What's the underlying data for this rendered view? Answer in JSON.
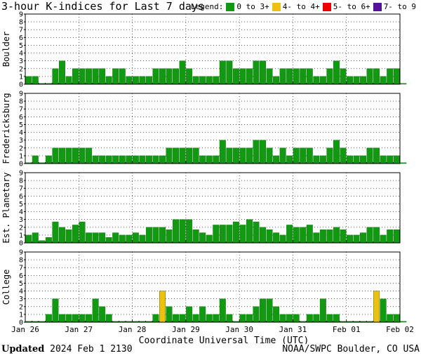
{
  "title": "3-hour K-indices for Last 7 days",
  "legend": {
    "label": "Legend:",
    "items": [
      {
        "label": "0 to 3+",
        "color": "#119911"
      },
      {
        "label": "4- to 4+",
        "color": "#f0c010"
      },
      {
        "label": "5- to 6+",
        "color": "#ee0000"
      },
      {
        "label": "7- to 9",
        "color": "#551199"
      }
    ]
  },
  "footer": {
    "updated_label": "Updated",
    "updated_value": "2024 Feb  1 2130",
    "source": "NOAA/SWPC Boulder, CO USA"
  },
  "chart_data": {
    "type": "bar",
    "xlabel": "Coordinate Universal Time (UTC)",
    "x_ticks": [
      "Jan 26",
      "Jan 27",
      "Jan 28",
      "Jan 29",
      "Jan 30",
      "Jan 31",
      "Feb 01",
      "Feb 02"
    ],
    "ylim": [
      0,
      9
    ],
    "y_ticks": [
      "0",
      "1",
      "2",
      "3",
      "4",
      "5",
      "6",
      "7",
      "8",
      "9"
    ],
    "grid": true,
    "series": [
      {
        "name": "Boulder",
        "values": [
          1,
          1,
          0,
          0,
          2,
          3,
          1,
          2,
          2,
          2,
          2,
          2,
          1,
          2,
          2,
          1,
          1,
          1,
          1,
          2,
          2,
          2,
          2,
          3,
          2,
          1,
          1,
          1,
          1,
          3,
          3,
          2,
          2,
          2,
          3,
          3,
          2,
          1,
          2,
          2,
          2,
          2,
          2,
          1,
          1,
          2,
          3,
          2,
          1,
          1,
          1,
          2,
          2,
          1,
          2,
          2,
          0
        ]
      },
      {
        "name": "Fredericksburg",
        "values": [
          0,
          1,
          0,
          1,
          2,
          2,
          2,
          2,
          2,
          2,
          1,
          1,
          1,
          1,
          1,
          1,
          1,
          1,
          1,
          1,
          1,
          2,
          2,
          2,
          2,
          2,
          1,
          1,
          1,
          3,
          2,
          2,
          2,
          2,
          3,
          3,
          2,
          1,
          2,
          1,
          2,
          2,
          2,
          1,
          1,
          2,
          3,
          2,
          1,
          1,
          1,
          2,
          2,
          1,
          1,
          1,
          0
        ]
      },
      {
        "name": "Est. Planetary",
        "values": [
          1.0,
          1.3,
          0.3,
          0.7,
          2.7,
          2.0,
          1.7,
          2.3,
          2.7,
          1.3,
          1.3,
          1.3,
          0.7,
          1.3,
          1.0,
          1.0,
          1.3,
          1.0,
          2.0,
          2.0,
          2.0,
          1.7,
          3.0,
          3.0,
          3.0,
          1.7,
          1.3,
          1.0,
          2.3,
          2.3,
          2.3,
          2.7,
          2.3,
          3.0,
          2.7,
          2.0,
          1.7,
          1.3,
          1.0,
          2.3,
          2.0,
          2.0,
          2.3,
          1.3,
          1.7,
          1.7,
          2.0,
          1.7,
          1.0,
          1.0,
          1.3,
          2.0,
          2.0,
          1.0,
          1.7,
          1.7
        ]
      },
      {
        "name": "College",
        "values": [
          0,
          0,
          0,
          1,
          3,
          1,
          1,
          1,
          1,
          1,
          3,
          2,
          1,
          0,
          0,
          0,
          0,
          0,
          0,
          1,
          4,
          2,
          1,
          1,
          2,
          1,
          2,
          1,
          1,
          3,
          1,
          0,
          1,
          1,
          2,
          3,
          3,
          2,
          1,
          1,
          1,
          0,
          1,
          1,
          3,
          1,
          1,
          0,
          0,
          0,
          0,
          0,
          4,
          3,
          1,
          1,
          0
        ]
      }
    ]
  }
}
